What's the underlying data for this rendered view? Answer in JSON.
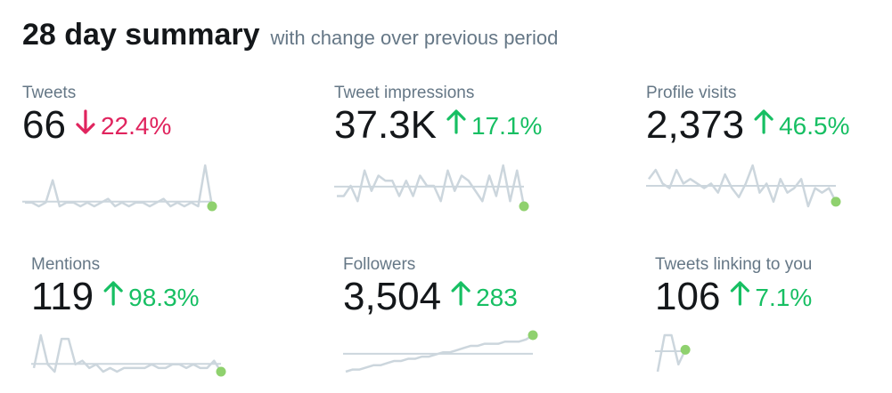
{
  "header": {
    "title": "28 day summary",
    "subtitle": "with change over previous period"
  },
  "metrics": [
    {
      "label": "Tweets",
      "value": "66",
      "direction": "down",
      "change": "22.4%",
      "color": "#e0245e",
      "sparkline": [
        2,
        2,
        1,
        2,
        8,
        1,
        2,
        2,
        1,
        2,
        1,
        2,
        3,
        1,
        2,
        1,
        2,
        2,
        1,
        2,
        3,
        1,
        2,
        1,
        2,
        1,
        12,
        1
      ]
    },
    {
      "label": "Tweet impressions",
      "value": "37.3K",
      "direction": "up",
      "change": "17.1%",
      "color": "#17bf63",
      "sparkline": [
        2,
        2,
        4,
        1,
        7,
        3,
        6,
        5,
        5,
        2,
        5,
        2,
        6,
        4,
        4,
        1,
        7,
        3,
        6,
        5,
        3,
        1,
        6,
        2,
        8,
        1,
        7,
        0
      ]
    },
    {
      "label": "Profile visits",
      "value": "2,373",
      "direction": "up",
      "change": "46.5%",
      "color": "#17bf63",
      "sparkline": [
        6,
        8,
        5,
        4,
        8,
        5,
        6,
        5,
        4,
        5,
        3,
        7,
        4,
        2,
        5,
        9,
        3,
        5,
        1,
        6,
        3,
        4,
        6,
        0,
        4,
        3,
        4,
        1
      ]
    },
    {
      "label": "Mentions",
      "value": "119",
      "direction": "up",
      "change": "98.3%",
      "color": "#17bf63",
      "sparkline": [
        1,
        10,
        2,
        0,
        9,
        9,
        2,
        3,
        1,
        2,
        0,
        1,
        0,
        1,
        1,
        1,
        1,
        2,
        1,
        1,
        2,
        2,
        1,
        2,
        1,
        1,
        3,
        0
      ]
    },
    {
      "label": "Followers",
      "value": "3,504",
      "direction": "up",
      "change": "283",
      "color": "#17bf63",
      "sparkline": [
        0,
        1,
        1,
        2,
        3,
        3,
        4,
        5,
        5,
        6,
        6,
        7,
        7,
        8,
        9,
        9,
        10,
        11,
        12,
        12,
        13,
        13,
        13,
        14,
        14,
        14,
        15,
        17
      ]
    },
    {
      "label": "Tweets linking to you",
      "value": "106",
      "direction": "up",
      "change": "7.1%",
      "color": "#17bf63",
      "sparkline": [
        0,
        5,
        5,
        1,
        3
      ]
    }
  ]
}
